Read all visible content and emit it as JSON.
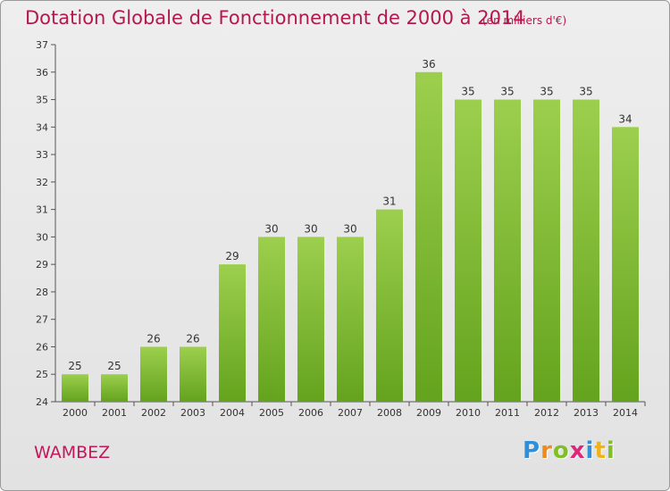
{
  "chart_data": {
    "type": "bar",
    "title": "Dotation Globale de Fonctionnement de 2000 à 2014",
    "unit_label": "(en milliers d'€)",
    "categories": [
      "2000",
      "2001",
      "2002",
      "2003",
      "2004",
      "2005",
      "2006",
      "2007",
      "2008",
      "2009",
      "2010",
      "2011",
      "2012",
      "2013",
      "2014"
    ],
    "values": [
      25,
      25,
      26,
      26,
      29,
      30,
      30,
      30,
      31,
      36,
      35,
      35,
      35,
      35,
      34
    ],
    "ylim": [
      24,
      37
    ],
    "yticks": [
      24,
      25,
      26,
      27,
      28,
      29,
      30,
      31,
      32,
      33,
      34,
      35,
      36,
      37
    ],
    "grid": false,
    "bar_color_top": "#9ccf4d",
    "bar_color_bottom": "#64a31d"
  },
  "commune_name": "WAMBEZ",
  "logo": {
    "letters": [
      "P",
      "r",
      "o",
      "x",
      "i",
      "t",
      "i"
    ],
    "colors": [
      "#2f8fd8",
      "#f08a1c",
      "#7fbf2a",
      "#e0267a",
      "#2f8fd8",
      "#f0b21c",
      "#7fbf2a"
    ]
  }
}
